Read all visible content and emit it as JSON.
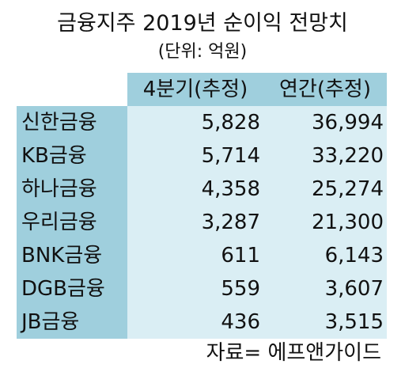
{
  "title": "금융지주 2019년 순이익 전망치",
  "unit": "(단위: 억원)",
  "columns": [
    "",
    "4분기(추정)",
    "연간(추정)"
  ],
  "rows": [
    {
      "name": "신한금융",
      "q4": "5,828",
      "annual": "36,994"
    },
    {
      "name": "KB금융",
      "q4": "5,714",
      "annual": "33,220"
    },
    {
      "name": "하나금융",
      "q4": "4,358",
      "annual": "25,274"
    },
    {
      "name": "우리금융",
      "q4": "3,287",
      "annual": "21,300"
    },
    {
      "name": "BNK금융",
      "q4": "611",
      "annual": "6,143"
    },
    {
      "name": "DGB금융",
      "q4": "559",
      "annual": "3,607"
    },
    {
      "name": "JB금융",
      "q4": "436",
      "annual": "3,515"
    }
  ],
  "source": "자료= 에프앤가이드",
  "colors": {
    "header_bg": "#9fcfdd",
    "label_bg": "#9fcfdd",
    "cell_bg": "#daeef4"
  },
  "chart_data": {
    "type": "table",
    "title": "금융지주 2019년 순이익 전망치",
    "columns": [
      "4분기(추정)",
      "연간(추정)"
    ],
    "categories": [
      "신한금융",
      "KB금융",
      "하나금융",
      "우리금융",
      "BNK금융",
      "DGB금융",
      "JB금융"
    ],
    "series": [
      {
        "name": "4분기(추정)",
        "values": [
          5828,
          5714,
          4358,
          3287,
          611,
          559,
          436
        ]
      },
      {
        "name": "연간(추정)",
        "values": [
          36994,
          33220,
          25274,
          21300,
          6143,
          3607,
          3515
        ]
      }
    ]
  }
}
